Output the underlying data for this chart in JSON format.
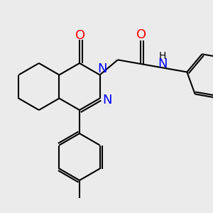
{
  "bg_color": "#ebebeb",
  "bond_color": "#000000",
  "bond_width": 1.5,
  "figsize": [
    3.0,
    3.0
  ],
  "dpi": 100,
  "xlim": [
    0,
    300
  ],
  "ylim": [
    0,
    300
  ]
}
